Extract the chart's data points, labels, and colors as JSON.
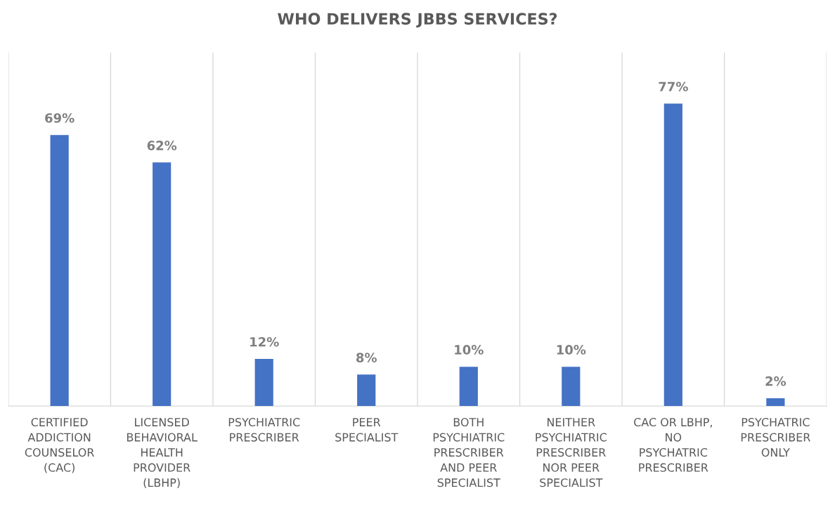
{
  "chart_data": {
    "type": "bar",
    "title": "WHO DELIVERS JBBS SERVICES?",
    "categories": [
      "CERTIFIED ADDICTION COUNSELOR (CAC)",
      "LICENSED BEHAVIORAL HEALTH PROVIDER (LBHP)",
      "PSYCHIATRIC PRESCRIBER",
      "PEER SPECIALIST",
      "BOTH PSYCHIATRIC PRESCRIBER AND PEER SPECIALIST",
      "NEITHER PSYCHIATRIC PRESCRIBER NOR PEER SPECIALIST",
      "CAC OR LBHP, NO PSYCHATRIC PRESCRIBER",
      "PSYCHATRIC PRESCRIBER ONLY"
    ],
    "values": [
      69,
      62,
      12,
      8,
      10,
      10,
      77,
      2
    ],
    "value_labels": [
      "69%",
      "62%",
      "12%",
      "8%",
      "10%",
      "10%",
      "77%",
      "2%"
    ],
    "color": "#4472c4",
    "ylim": [
      0,
      90
    ],
    "grid": "x"
  }
}
